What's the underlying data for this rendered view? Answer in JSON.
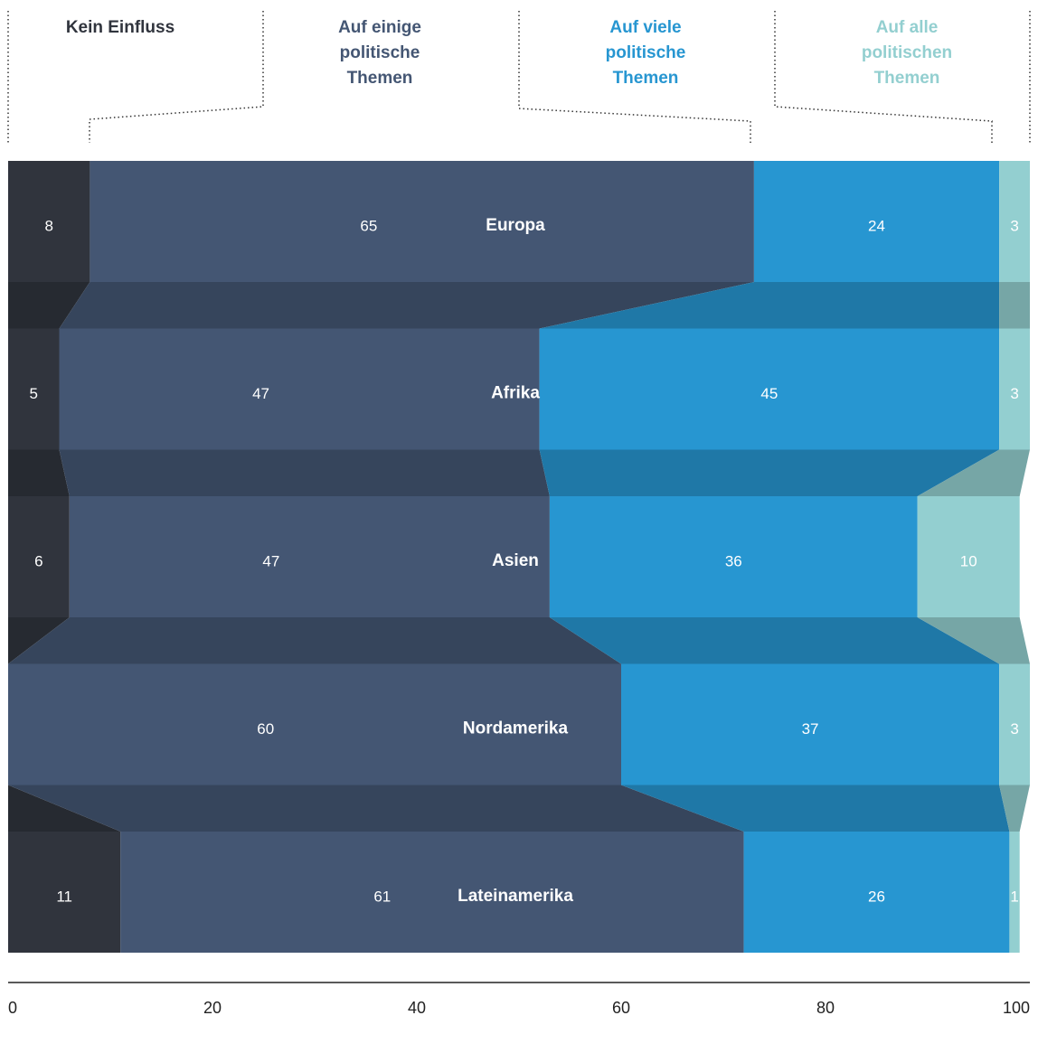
{
  "chart_data": {
    "type": "stacked-bar",
    "categories": [
      "Europa",
      "Afrika",
      "Asien",
      "Nordamerika",
      "Lateinamerika"
    ],
    "series": [
      {
        "name": "Kein Einfluss",
        "color": "#30343d",
        "values": [
          8,
          5,
          6,
          0,
          11
        ]
      },
      {
        "name": "Auf einige politische Themen",
        "color": "#445673",
        "values": [
          65,
          47,
          47,
          60,
          61
        ]
      },
      {
        "name": "Auf viele politische Themen",
        "color": "#2796d1",
        "values": [
          24,
          45,
          36,
          37,
          26
        ]
      },
      {
        "name": "Auf alle politischen Themen",
        "color": "#93cfd0",
        "values": [
          3,
          3,
          10,
          3,
          1
        ]
      }
    ],
    "xlim": [
      0,
      100
    ],
    "xticks": [
      0,
      20,
      40,
      60,
      80,
      100
    ]
  }
}
